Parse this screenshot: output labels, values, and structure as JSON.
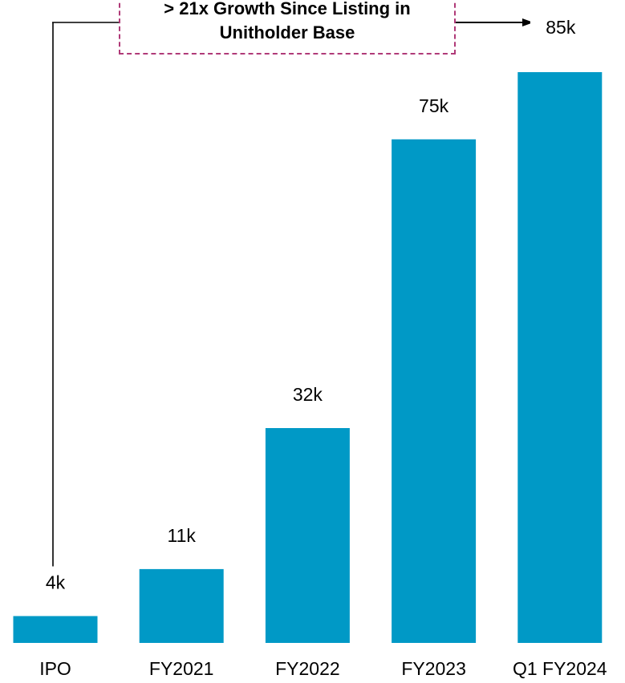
{
  "colors": {
    "bar": "#0099c6",
    "annotation_border": "#b03a78",
    "text": "#000000"
  },
  "annotation": {
    "line1": "> 21x Growth Since Listing in",
    "line2": "Unitholder Base"
  },
  "chart_data": {
    "type": "bar",
    "categories": [
      "IPO",
      "FY2021",
      "FY2022",
      "FY2023",
      "Q1 FY2024"
    ],
    "values": [
      4,
      11,
      32,
      75,
      85
    ],
    "data_labels": [
      "4k",
      "11k",
      "32k",
      "75k",
      "85k"
    ],
    "title": "",
    "xlabel": "",
    "ylabel": "",
    "ylim": [
      0,
      85
    ],
    "grid": false,
    "legend": "none"
  }
}
